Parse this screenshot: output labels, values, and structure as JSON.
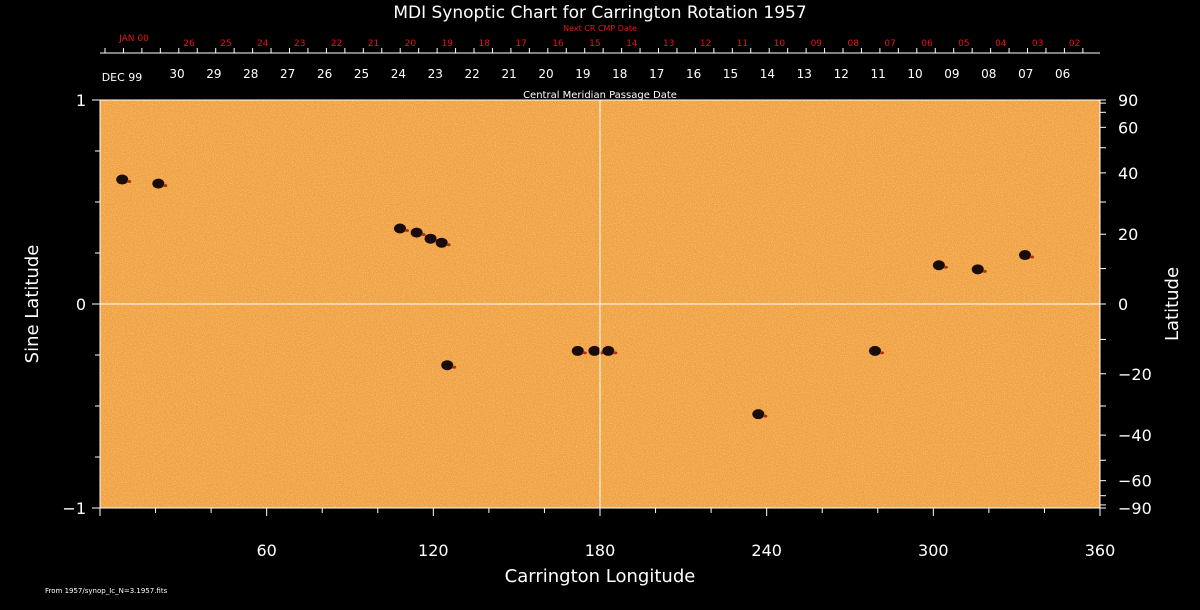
{
  "chart_data": {
    "type": "heatmap",
    "title": "MDI Synoptic Chart for Carrington Rotation 1957",
    "xlabel": "Carrington Longitude",
    "ylabel_left": "Sine Latitude",
    "ylabel_right": "Latitude",
    "xlim": [
      0,
      360
    ],
    "ylim": [
      -1,
      1
    ],
    "x_ticks": [
      "60",
      "120",
      "180",
      "240",
      "300",
      "360"
    ],
    "x_tick_values": [
      60,
      120,
      180,
      240,
      300,
      360
    ],
    "y_left_ticks": [
      "1",
      "0",
      "−1"
    ],
    "y_left_tick_values": [
      1,
      0,
      -1
    ],
    "y_right_ticks": [
      "90",
      "60",
      "40",
      "20",
      "0",
      "−20",
      "−40",
      "−60",
      "−90"
    ],
    "y_right_tick_values": [
      90,
      60,
      40,
      20,
      0,
      -20,
      -40,
      -60,
      -90
    ],
    "grid": "lines at longitude 180 and latitude 0",
    "background_color": "#f0a040",
    "spot_color": "#1a0c08",
    "sunspots": [
      {
        "lon": 8,
        "sinlat": 0.61
      },
      {
        "lon": 21,
        "sinlat": 0.59
      },
      {
        "lon": 108,
        "sinlat": 0.37
      },
      {
        "lon": 114,
        "sinlat": 0.35
      },
      {
        "lon": 119,
        "sinlat": 0.32
      },
      {
        "lon": 123,
        "sinlat": 0.3
      },
      {
        "lon": 125,
        "sinlat": -0.3
      },
      {
        "lon": 172,
        "sinlat": -0.23
      },
      {
        "lon": 178,
        "sinlat": -0.23
      },
      {
        "lon": 183,
        "sinlat": -0.23
      },
      {
        "lon": 237,
        "sinlat": -0.54
      },
      {
        "lon": 279,
        "sinlat": -0.23
      },
      {
        "lon": 302,
        "sinlat": 0.19
      },
      {
        "lon": 316,
        "sinlat": 0.17
      },
      {
        "lon": 333,
        "sinlat": 0.24
      }
    ]
  },
  "top_axis": {
    "label": "Next CR CMP Date",
    "start_label": "JAN 00",
    "dates": [
      "26",
      "25",
      "24",
      "23",
      "22",
      "21",
      "20",
      "19",
      "18",
      "17",
      "16",
      "15",
      "14",
      "13",
      "12",
      "11",
      "10",
      "09",
      "08",
      "07",
      "06",
      "05",
      "04",
      "03",
      "02"
    ]
  },
  "cmp_axis": {
    "label": "Central Meridian Passage Date",
    "start_label": "DEC 99",
    "dates": [
      "30",
      "29",
      "28",
      "27",
      "26",
      "25",
      "24",
      "23",
      "22",
      "21",
      "20",
      "19",
      "18",
      "17",
      "16",
      "15",
      "14",
      "13",
      "12",
      "11",
      "10",
      "09",
      "08",
      "07",
      "06"
    ]
  },
  "footer_text": "From 1957/synop_Ic_N=3.1957.fits"
}
